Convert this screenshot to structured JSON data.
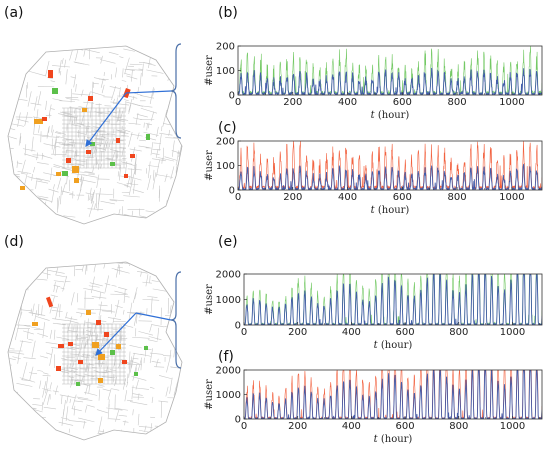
{
  "panel_labels": {
    "a": "(a)",
    "b": "(b)",
    "c": "(c)",
    "d": "(d)",
    "e": "(e)",
    "f": "(f)"
  },
  "colors": {
    "green": "#5cc04a",
    "blue": "#3b55a6",
    "red": "#f0461e",
    "orange": "#f0a020",
    "map_line": "#c8c8c8",
    "arrow": "#2f6fd6"
  },
  "map_icons": {
    "top": "city-road-map-with-highlighted-zones",
    "bottom": "city-road-map-with-highlighted-zones"
  },
  "chart_data": [
    {
      "id": "b",
      "type": "line",
      "xlabel_italic": "t",
      "xlabel_unit": "(hour)",
      "ylabel": "#user",
      "xlim": [
        0,
        1110
      ],
      "ylim": [
        0,
        200
      ],
      "xticks": [
        0,
        200,
        400,
        600,
        800,
        1000
      ],
      "yticks": [
        0,
        100,
        200
      ],
      "grid": false,
      "series": [
        {
          "color": "green",
          "periodic_peak": 110,
          "trend": 0.02,
          "noise": 55
        },
        {
          "color": "blue",
          "periodic_peak": 70,
          "trend": 0.015,
          "noise": 30
        }
      ]
    },
    {
      "id": "c",
      "type": "line",
      "xlabel_italic": "t",
      "xlabel_unit": "(hour)",
      "ylabel": "#user",
      "xlim": [
        0,
        1110
      ],
      "ylim": [
        0,
        200
      ],
      "xticks": [
        0,
        200,
        400,
        600,
        800,
        1000
      ],
      "yticks": [
        0,
        100,
        200
      ],
      "grid": false,
      "series": [
        {
          "color": "red",
          "periodic_peak": 130,
          "trend": 0.01,
          "noise": 60
        },
        {
          "color": "blue",
          "periodic_peak": 70,
          "trend": 0.01,
          "noise": 25
        }
      ]
    },
    {
      "id": "e",
      "type": "line",
      "xlabel_italic": "t",
      "xlabel_unit": "(hour)",
      "ylabel": "#user",
      "xlim": [
        0,
        1110
      ],
      "ylim": [
        0,
        2000
      ],
      "xticks": [
        0,
        200,
        400,
        600,
        800,
        1000
      ],
      "yticks": [
        0,
        1000,
        2000
      ],
      "grid": false,
      "series": [
        {
          "color": "green",
          "periodic_peak": 1100,
          "trend": 0.25,
          "noise": 250
        },
        {
          "color": "blue",
          "periodic_peak": 850,
          "trend": 0.2,
          "noise": 150
        }
      ]
    },
    {
      "id": "f",
      "type": "line",
      "xlabel_italic": "t",
      "xlabel_unit": "(hour)",
      "ylabel": "#user",
      "xlim": [
        0,
        1110
      ],
      "ylim": [
        0,
        2000
      ],
      "xticks": [
        0,
        200,
        400,
        600,
        800,
        1000
      ],
      "yticks": [
        0,
        1000,
        2000
      ],
      "grid": false,
      "series": [
        {
          "color": "red",
          "periodic_peak": 1150,
          "trend": 0.25,
          "noise": 280
        },
        {
          "color": "blue",
          "periodic_peak": 850,
          "trend": 0.2,
          "noise": 150
        }
      ]
    }
  ]
}
